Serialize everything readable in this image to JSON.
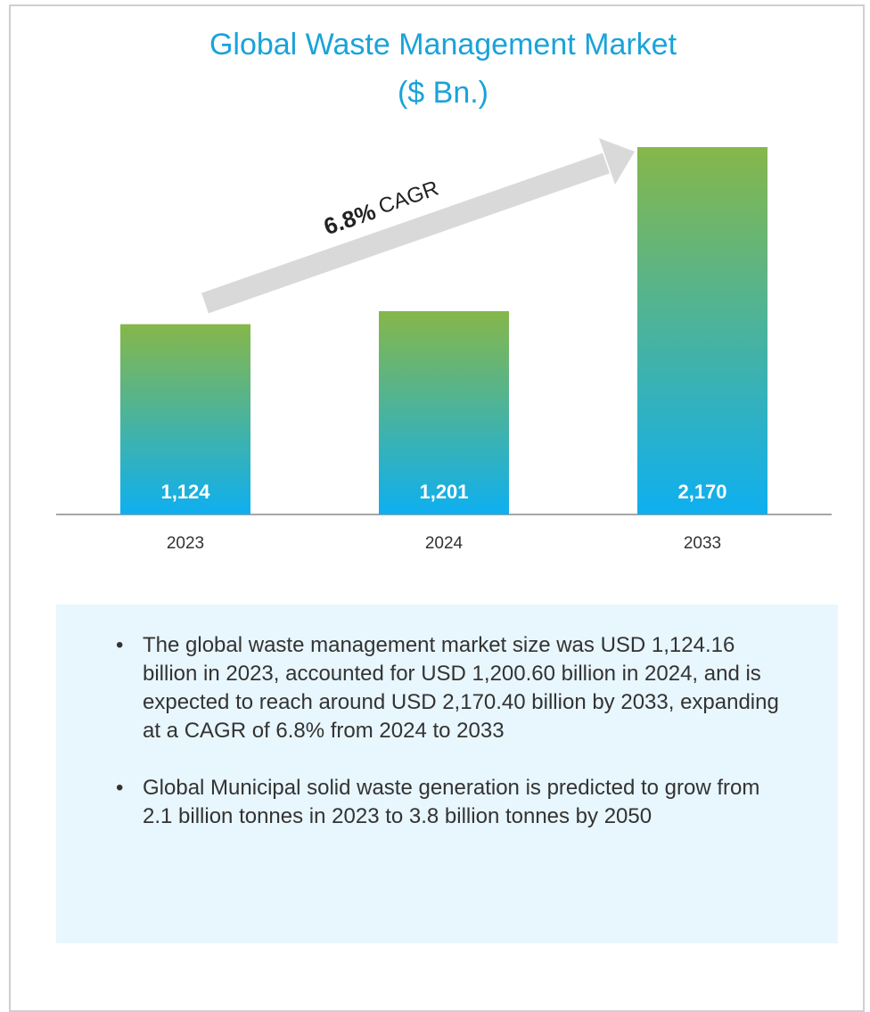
{
  "chart_data": {
    "type": "bar",
    "title": "Global Waste Management Market",
    "subtitle": "($ Bn.)",
    "categories": [
      "2023",
      "2024",
      "2033"
    ],
    "values": [
      1124,
      1201,
      2170
    ],
    "value_labels": [
      "1,124",
      "1,201",
      "2,170"
    ],
    "color_top": "#86b74a",
    "color_bottom": "#0eaff0",
    "annotations": [
      "6.8%",
      "CAGR"
    ]
  },
  "notes": [
    "The global waste management market size was USD 1,124.16 billion in 2023, accounted for USD 1,200.60 billion in 2024, and is expected to reach around USD 2,170.40 billion by 2033, expanding at a CAGR of 6.8% from 2024 to 2033",
    "Global Municipal solid waste generation is predicted to grow from 2.1 billion tonnes in 2023 to 3.8 billion tonnes by 2050"
  ]
}
